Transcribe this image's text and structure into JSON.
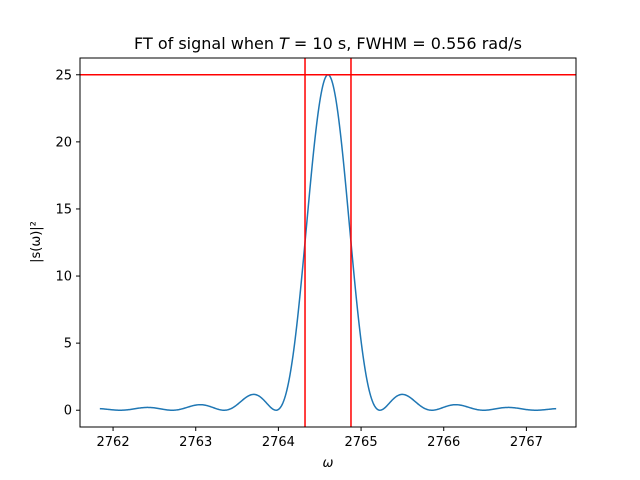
{
  "chart_data": {
    "type": "line",
    "title": "FT of signal when T = 10 s, FWHM = 0.556 rad/s",
    "title_parts": {
      "prefix": "FT of signal when ",
      "var": "T",
      "suffix": " = 10 s, FWHM = 0.556 rad/s"
    },
    "xlabel": "ω",
    "ylabel": "|s(ω)|²",
    "xlim": [
      2761.6,
      2767.6
    ],
    "ylim": [
      -1.25,
      26.25
    ],
    "xticks": [
      2762,
      2763,
      2764,
      2765,
      2766,
      2767
    ],
    "yticks": [
      0,
      5,
      10,
      15,
      20,
      25
    ],
    "grid": false,
    "series": [
      {
        "color": "#1f77b4",
        "function": "sinc_squared",
        "center": 2764.6,
        "peak": 25,
        "x_range": [
          2761.84,
          2767.36
        ]
      }
    ],
    "hlines": [
      {
        "y": 25,
        "color": "#ff0000"
      }
    ],
    "vlines": [
      {
        "x": 2764.322,
        "color": "#ff0000"
      },
      {
        "x": 2764.878,
        "color": "#ff0000"
      }
    ]
  }
}
